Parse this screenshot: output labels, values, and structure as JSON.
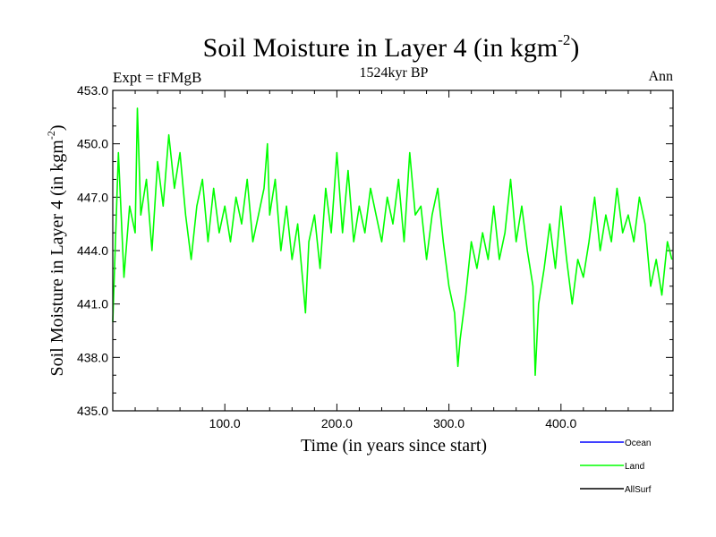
{
  "chart_data": {
    "type": "line",
    "title_main": "Soil Moisture in Layer 4 (in kgm",
    "title_sup": "-2",
    "title_close": ")",
    "subtitle_left": "Expt = tFMgB",
    "subtitle_center": "1524kyr BP",
    "subtitle_right": "Ann",
    "xlabel": "Time (in years since start)",
    "ylabel_main": "Soil Moisture in Layer 4 (in kgm",
    "ylabel_sup": "-2",
    "ylabel_close": ")",
    "xlim": [
      0,
      500
    ],
    "ylim": [
      435,
      453
    ],
    "xticks": [
      100,
      200,
      300,
      400
    ],
    "xtick_labels": [
      "100.0",
      "200.0",
      "300.0",
      "400.0"
    ],
    "yticks": [
      435,
      438,
      441,
      444,
      447,
      450,
      453
    ],
    "ytick_labels": [
      "435.0",
      "438.0",
      "441.0",
      "444.0",
      "447.0",
      "450.0",
      "453.0"
    ],
    "legend": [
      {
        "name": "Ocean",
        "color": "#0000ff"
      },
      {
        "name": "Land",
        "color": "#00ff00"
      },
      {
        "name": "AllSurf",
        "color": "#000000"
      }
    ],
    "series": [
      {
        "name": "Land",
        "color": "#00ff00",
        "x": [
          0,
          5,
          10,
          15,
          20,
          22,
          25,
          30,
          35,
          40,
          45,
          50,
          55,
          60,
          65,
          70,
          75,
          80,
          85,
          90,
          95,
          100,
          105,
          110,
          115,
          120,
          125,
          130,
          135,
          138,
          140,
          145,
          150,
          155,
          160,
          165,
          170,
          172,
          175,
          180,
          185,
          190,
          195,
          200,
          205,
          210,
          215,
          220,
          225,
          230,
          235,
          240,
          245,
          250,
          255,
          260,
          265,
          270,
          275,
          280,
          285,
          290,
          295,
          300,
          305,
          308,
          310,
          315,
          320,
          325,
          330,
          335,
          340,
          345,
          350,
          355,
          360,
          365,
          370,
          375,
          377,
          380,
          385,
          390,
          395,
          400,
          405,
          410,
          415,
          420,
          425,
          430,
          435,
          440,
          445,
          450,
          455,
          460,
          465,
          470,
          475,
          480,
          485,
          490,
          495,
          499
        ],
        "y": [
          440.0,
          449.5,
          442.5,
          446.5,
          445.0,
          452.0,
          446.0,
          448.0,
          444.0,
          449.0,
          446.5,
          450.5,
          447.5,
          449.5,
          446.0,
          443.5,
          446.5,
          448.0,
          444.5,
          447.5,
          445.0,
          446.5,
          444.5,
          447.0,
          445.5,
          448.0,
          444.5,
          446.0,
          447.5,
          450.0,
          446.0,
          448.0,
          444.0,
          446.5,
          443.5,
          445.5,
          442.0,
          440.5,
          444.5,
          446.0,
          443.0,
          447.5,
          445.0,
          449.5,
          445.0,
          448.5,
          444.5,
          446.5,
          445.0,
          447.5,
          446.0,
          444.5,
          447.0,
          445.5,
          448.0,
          444.5,
          449.5,
          446.0,
          446.5,
          443.5,
          446.0,
          447.5,
          444.5,
          442.0,
          440.5,
          437.5,
          439.0,
          441.5,
          444.5,
          443.0,
          445.0,
          443.5,
          446.5,
          443.5,
          445.0,
          448.0,
          444.5,
          446.5,
          444.0,
          442.0,
          437.0,
          441.0,
          443.0,
          445.5,
          443.0,
          446.5,
          443.5,
          441.0,
          443.5,
          442.5,
          444.5,
          447.0,
          444.0,
          446.0,
          444.5,
          447.5,
          445.0,
          446.0,
          444.5,
          447.0,
          445.5,
          442.0,
          443.5,
          441.5,
          444.5,
          443.5
        ]
      }
    ]
  }
}
